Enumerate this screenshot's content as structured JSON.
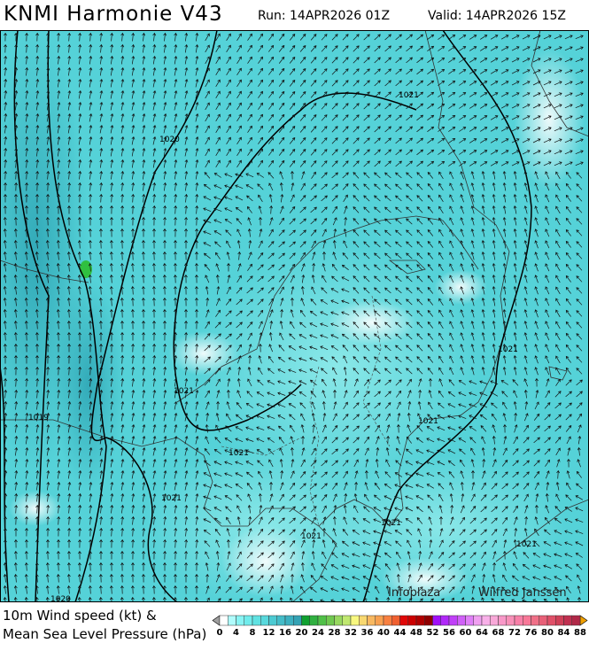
{
  "header": {
    "title": "KNMI Harmonie V43",
    "run": "Run: 14APR2026 01Z",
    "valid": "Valid: 14APR2026 15Z"
  },
  "legend": {
    "line1": "10m Wind speed (kt) &",
    "line2": "Mean Sea Level Pressure (hPa)",
    "ticks": [
      "0",
      "4",
      "8",
      "12",
      "16",
      "20",
      "24",
      "28",
      "32",
      "36",
      "40",
      "44",
      "48",
      "52",
      "56",
      "60",
      "64",
      "68",
      "72",
      "76",
      "80",
      "84",
      "88"
    ],
    "colors": [
      "#ffffff",
      "#b0fcfc",
      "#88f4f4",
      "#70ecec",
      "#60e2e2",
      "#58d8dc",
      "#4ccad2",
      "#44bcc8",
      "#3cb0c0",
      "#34a2b4",
      "#10a030",
      "#30b040",
      "#50c048",
      "#70c850",
      "#98d860",
      "#c0e870",
      "#f8f880",
      "#f8d870",
      "#f8b860",
      "#f8a050",
      "#f88040",
      "#f06030",
      "#e00808",
      "#cc0000",
      "#b00000",
      "#900000",
      "#a010f8",
      "#b028f8",
      "#c040f8",
      "#d060f8",
      "#e080f8",
      "#f0a0f0",
      "#f8b0e8",
      "#f8a8d8",
      "#f898c8",
      "#f890b8",
      "#f880a8",
      "#f87898",
      "#f07088",
      "#e86078",
      "#e05068",
      "#d04058",
      "#c03050",
      "#b02848"
    ],
    "under_color": "#a0a0a0",
    "over_color": "#f0a000"
  },
  "map": {
    "base_color": "#55d2d8",
    "isobar_labels": [
      {
        "text": "1020",
        "pos": "upper-left"
      },
      {
        "text": "1021",
        "pos": "upper-right"
      },
      {
        "text": "1021",
        "pos": "center-left"
      },
      {
        "text": "1021",
        "pos": "center"
      },
      {
        "text": "1021",
        "pos": "right"
      },
      {
        "text": "1021",
        "pos": "center-right"
      },
      {
        "text": "1019",
        "pos": "left"
      },
      {
        "text": "1021",
        "pos": "lower-left"
      },
      {
        "text": "1021",
        "pos": "lower-center"
      },
      {
        "text": "1021",
        "pos": "lower-center-2"
      },
      {
        "text": "1021",
        "pos": "lower-right"
      },
      {
        "text": "1020",
        "pos": "bottom-left"
      }
    ]
  },
  "credits": {
    "left": "Infoplaza",
    "right": "Wilfred Janssen"
  }
}
